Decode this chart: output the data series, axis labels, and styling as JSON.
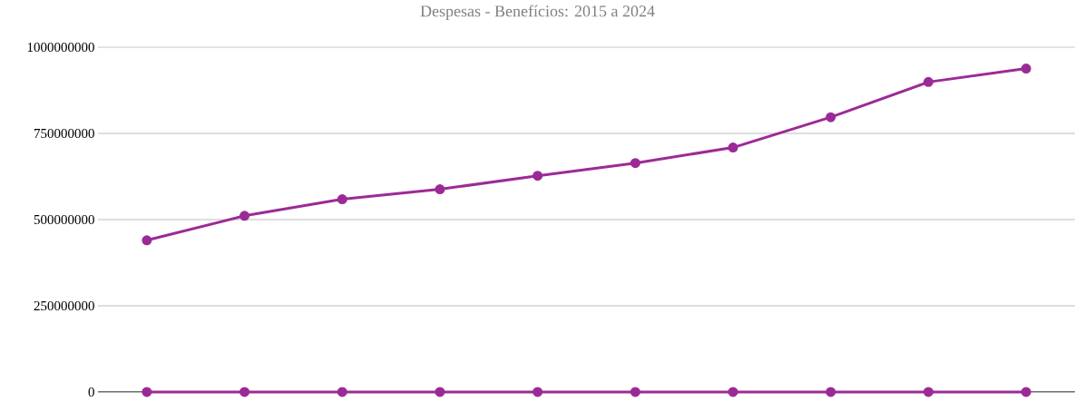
{
  "chart_data": {
    "type": "line",
    "title": "Despesas - Benefícios: 2015 a 2024",
    "categories": [
      null,
      null,
      null,
      null,
      null,
      null,
      null,
      null,
      null,
      null
    ],
    "series": [
      {
        "color": "#9c2a96",
        "values": [
          440000000,
          511000000,
          559000000,
          588000000,
          627000000,
          664000000,
          709000000,
          797000000,
          899000000,
          938000000
        ]
      },
      {
        "color": "#9c2a96",
        "values": [
          0,
          0,
          0,
          0,
          0,
          0,
          0,
          0,
          0,
          0
        ]
      }
    ],
    "ylim": [
      0,
      1000000000
    ],
    "yticks": [
      0,
      250000000,
      500000000,
      750000000,
      1000000000
    ],
    "grid": "y",
    "marker": "circle",
    "line_style": "solid"
  }
}
